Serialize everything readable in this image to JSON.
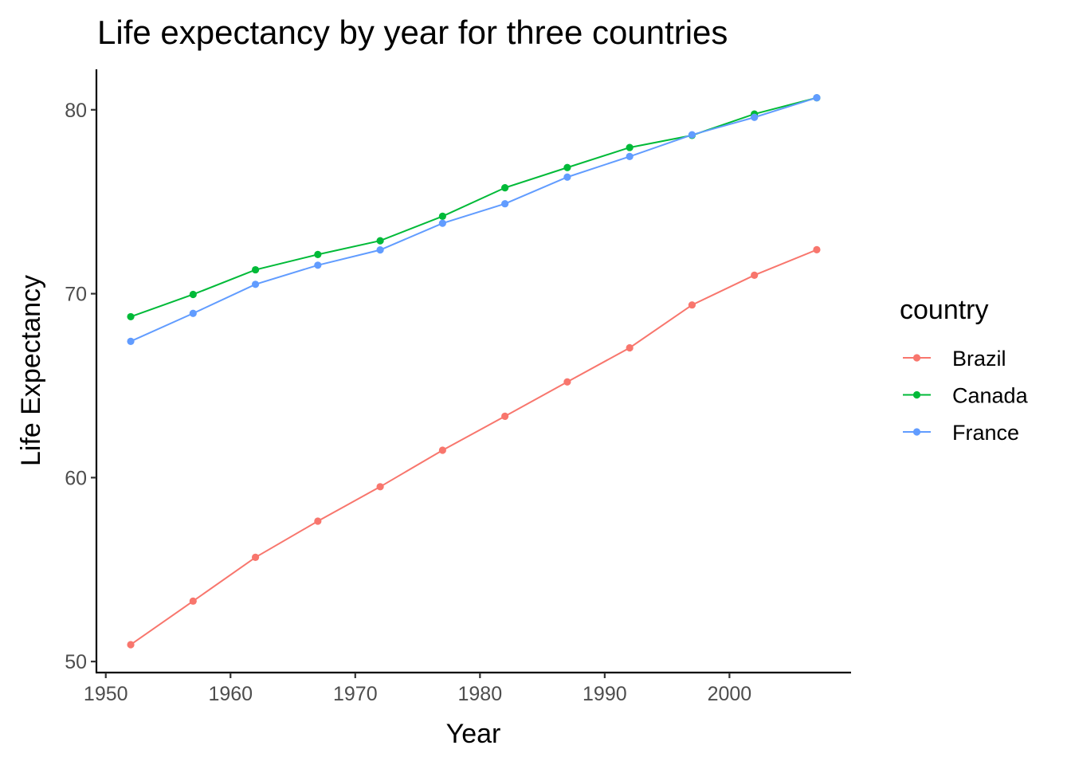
{
  "chart_data": {
    "type": "line",
    "title": "Life expectancy by year for three countries",
    "xlabel": "Year",
    "ylabel": "Life Expectancy",
    "x": [
      1952,
      1957,
      1962,
      1967,
      1972,
      1977,
      1982,
      1987,
      1992,
      1997,
      2002,
      2007
    ],
    "xlim": [
      1949.25,
      2009.75
    ],
    "ylim": [
      49.4,
      82.2
    ],
    "xticks": [
      1950,
      1960,
      1970,
      1980,
      1990,
      2000
    ],
    "yticks": [
      50,
      60,
      70,
      80
    ],
    "grid": false,
    "legend": {
      "title": "country",
      "position": "right"
    },
    "series": [
      {
        "name": "Brazil",
        "color": "#F8766D",
        "values": [
          50.917,
          53.285,
          55.665,
          57.632,
          59.504,
          61.489,
          63.336,
          65.205,
          67.057,
          69.388,
          71.006,
          72.39
        ]
      },
      {
        "name": "Canada",
        "color": "#00BA38",
        "values": [
          68.75,
          69.96,
          71.3,
          72.13,
          72.88,
          74.21,
          75.76,
          76.86,
          77.95,
          78.61,
          79.77,
          80.653
        ]
      },
      {
        "name": "France",
        "color": "#619CFF",
        "values": [
          67.41,
          68.93,
          70.51,
          71.55,
          72.38,
          73.83,
          74.89,
          76.34,
          77.46,
          78.64,
          79.59,
          80.657
        ]
      }
    ]
  }
}
